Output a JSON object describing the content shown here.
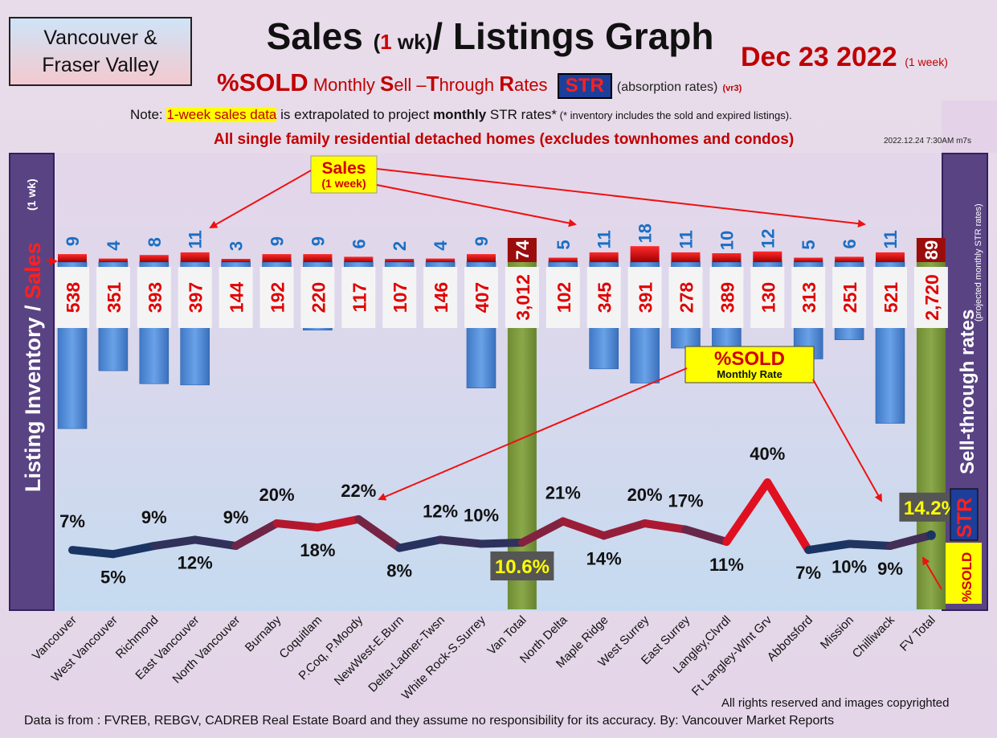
{
  "header": {
    "region_line1": "Vancouver &",
    "region_line2": "Fraser Valley",
    "title_a": "Sales ",
    "title_b": "(",
    "title_c": "1",
    "title_d": " wk)",
    "title_e": "/ Listings Graph",
    "date": "Dec 23  2022",
    "date_note": "(1 week)",
    "sub_sold": "%SOLD",
    "sub_m": "Monthly ",
    "sub_S": "S",
    "sub_ell": "ell –",
    "sub_T": "T",
    "sub_hrough": "hrough ",
    "sub_R": "R",
    "sub_ates": "ates",
    "sub_str": "STR",
    "sub_absorption": "(absorption rates)",
    "sub_vr": "(vr3)",
    "note_a": "Note: ",
    "note_b": "1-week sales data",
    "note_c": " is extrapolated to project ",
    "note_d": "monthly",
    "note_e": " STR rates*",
    "note_f": " (* inventory includes the sold and expired listings).",
    "homes": "All single family residential detached homes (excludes townhomes and condos)",
    "stamp": "2022.12.24 7:30AM m7s"
  },
  "left_axis": {
    "a": "Listing Inventory ",
    "b": "/ ",
    "c": "Sales",
    "d": "(1 wk)"
  },
  "right_axis": {
    "a": "Sell-through rates",
    "b": "(projected monthly STR rates)",
    "str": "STR",
    "sold": "%SOLD"
  },
  "callouts": {
    "sales_title": "Sales",
    "sales_sub": "(1 week)",
    "sold_title": "%SOLD",
    "sold_sub": "Monthly Rate"
  },
  "footer": {
    "rights": "All rights reserved and  images copyrighted",
    "source": "Data is from : FVREB, REBGV, CADREB Real Estate Board and they assume no responsibility for its accuracy. By: Vancouver Market Reports"
  },
  "colors": {
    "inventory_bar": "#4a86d4",
    "sales_bar": "#e00000",
    "total_bar": "#7b9a3a",
    "rate_low": "#1a3563",
    "rate_high": "#e01020",
    "sales_label": "#1a6fc4",
    "inventory_label": "#e00000",
    "panel": "#5a4383"
  },
  "chart_data": {
    "type": "bar",
    "categories": [
      "Vancouver",
      "West Vancouver",
      "Richmond",
      "East Vancouver",
      "North Vancouver",
      "Burnaby",
      "Coquitlam",
      "P.Coq, P.Moody",
      "NewWest-E.Burn",
      "Delta-Ladner-Twsn",
      "White Rock-S.Surrey",
      "Van Total",
      "North Delta",
      "Maple Ridge",
      "West Surrey",
      "East Surrey",
      "Langley,Clvrdl",
      "Ft Langley-Wlnt Grv",
      "Abbotsford",
      "Mission",
      "Chilliwack",
      "FV Total"
    ],
    "series": [
      {
        "name": "Sales",
        "sub": "(1 week)",
        "values": [
          9,
          4,
          8,
          11,
          3,
          9,
          9,
          6,
          2,
          4,
          9,
          74,
          5,
          11,
          18,
          11,
          10,
          12,
          5,
          6,
          11,
          89
        ],
        "labels": [
          "9",
          "4",
          "8",
          "11",
          "3",
          "9",
          "9",
          "6",
          "2",
          "4",
          "9",
          "74",
          "5",
          "11",
          "18",
          "11",
          "10",
          "12",
          "5",
          "6",
          "11",
          "89"
        ]
      },
      {
        "name": "Listing Inventory",
        "values": [
          538,
          351,
          393,
          397,
          144,
          192,
          220,
          117,
          107,
          146,
          407,
          3012,
          102,
          345,
          391,
          278,
          389,
          130,
          313,
          251,
          521,
          2720
        ],
        "labels": [
          "538",
          "351",
          "393",
          "397",
          "144",
          "192",
          "220",
          "117",
          "107",
          "146",
          "407",
          "3,012",
          "102",
          "345",
          "391",
          "278",
          "389",
          "130",
          "313",
          "251",
          "521",
          "2,720"
        ]
      },
      {
        "name": "%SOLD",
        "sub": "Monthly Rate",
        "values": [
          7,
          5,
          9,
          12,
          9,
          20,
          18,
          22,
          8,
          12,
          10,
          10.6,
          21,
          14,
          20,
          17,
          11,
          40,
          7,
          10,
          9,
          14.2
        ],
        "labels": [
          "7%",
          "5%",
          "9%",
          "12%",
          "9%",
          "20%",
          "18%",
          "22%",
          "8%",
          "12%",
          "10%",
          "10.6%",
          "21%",
          "14%",
          "20%",
          "17%",
          "11%",
          "40%",
          "7%",
          "10%",
          "9%",
          "14.2%"
        ]
      }
    ],
    "totals": [
      "Van Total",
      "FV Total"
    ],
    "grid": false
  }
}
